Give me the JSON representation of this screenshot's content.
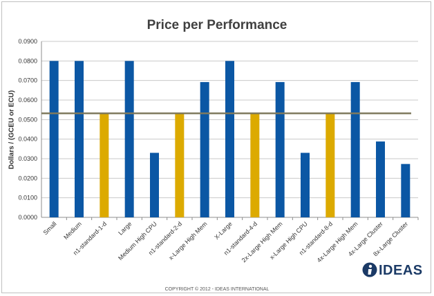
{
  "chart_data": {
    "type": "bar",
    "title": "Price per Performance",
    "xlabel": "",
    "ylabel": "Dollars / (GCEU or ECU)",
    "ylim": [
      0,
      0.09
    ],
    "yticks": [
      "0.0000",
      "0.0100",
      "0.0200",
      "0.0300",
      "0.0400",
      "0.0500",
      "0.0600",
      "0.0700",
      "0.0800",
      "0.0900"
    ],
    "grid": true,
    "categories": [
      "Small",
      "Medium",
      "n1-standard-1-d",
      "Large",
      "Medium High CPU",
      "n1-standard-2-d",
      "x-Large High Mem",
      "X-Large",
      "n1-standard-4-d",
      "2x-Large High Mem",
      "x-Large High CPU",
      "n1-standard-8-d",
      "4x-Large High Mem",
      "4x-Large Cluster",
      "8x-Large Cluster"
    ],
    "values": [
      0.08,
      0.08,
      0.053,
      0.08,
      0.033,
      0.053,
      0.0692,
      0.08,
      0.053,
      0.0692,
      0.033,
      0.053,
      0.0692,
      0.0388,
      0.0273
    ],
    "highlight": [
      false,
      false,
      true,
      false,
      false,
      true,
      false,
      false,
      true,
      false,
      false,
      true,
      false,
      false,
      false
    ],
    "reference_line": 0.0532,
    "colors": {
      "bar": "#0b57a4",
      "highlight": "#dcaa00",
      "reference_line": "#7f7a5e",
      "grid": "#c8c8c8"
    }
  },
  "logo": {
    "text": "IDEAS"
  },
  "footer": {
    "copyright": "COPYRIGHT © 2012 - IDEAS INTERNATIONAL"
  }
}
